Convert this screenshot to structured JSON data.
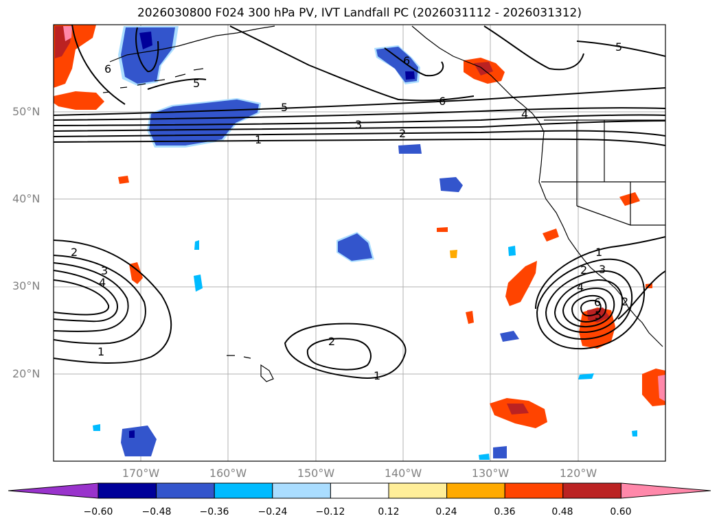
{
  "title": "2026030800 F024 300 hPa PV, IVT Landfall PC (2026031112 - 2026031312)",
  "map": {
    "lon_range": [
      -180,
      -110
    ],
    "lat_range": [
      10,
      60
    ],
    "lat_labels": [
      {
        "lat": 50,
        "text": "50°N"
      },
      {
        "lat": 40,
        "text": "40°N"
      },
      {
        "lat": 30,
        "text": "30°N"
      },
      {
        "lat": 20,
        "text": "20°N"
      }
    ],
    "lon_labels": [
      {
        "lon": -170,
        "text": "170°W"
      },
      {
        "lon": -160,
        "text": "160°W"
      },
      {
        "lon": -150,
        "text": "150°W"
      },
      {
        "lon": -140,
        "text": "140°W"
      },
      {
        "lon": -130,
        "text": "130°W"
      },
      {
        "lon": -120,
        "text": "120°W"
      }
    ],
    "contour_labels": [
      "1",
      "2",
      "3",
      "4",
      "5",
      "6"
    ]
  },
  "colorbar": {
    "colors": [
      "#9933cc",
      "#000099",
      "#3355cc",
      "#00bbff",
      "#aaddff",
      "#ffffff",
      "#ffee99",
      "#ffaa00",
      "#ff4400",
      "#bb2222",
      "#ff88aa"
    ],
    "ticks": [
      "−0.60",
      "−0.48",
      "−0.36",
      "−0.24",
      "−0.12",
      "0.12",
      "0.24",
      "0.36",
      "0.48",
      "0.60"
    ]
  }
}
